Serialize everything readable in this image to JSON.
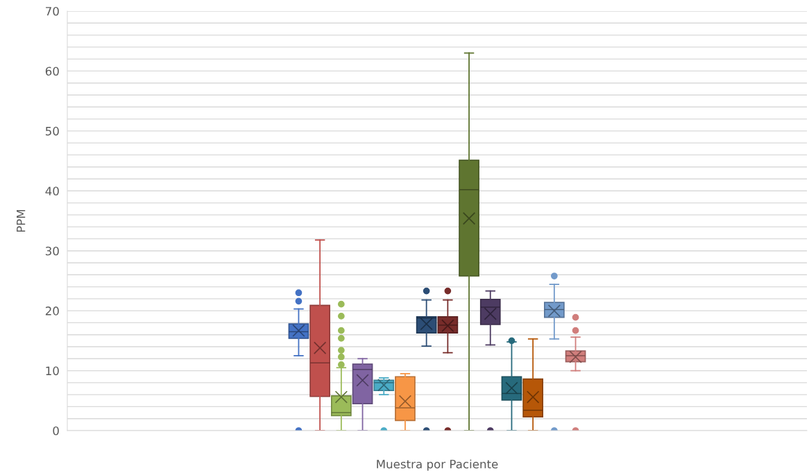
{
  "chart_data": {
    "type": "box",
    "xlabel": "Muestra por Paciente",
    "ylabel": "PPM",
    "categories": [
      null
    ],
    "ylim": [
      0,
      70
    ],
    "yticks": [
      0,
      {
        "value": 2,
        "label": null
      },
      {
        "value": 4,
        "label": null
      },
      {
        "value": 6,
        "label": null
      },
      {
        "value": 8,
        "label": null
      },
      10,
      {
        "value": 12,
        "label": null
      },
      {
        "value": 14,
        "label": null
      },
      {
        "value": 16,
        "label": null
      },
      {
        "value": 18,
        "label": null
      },
      20,
      {
        "value": 22,
        "label": null
      },
      {
        "value": 24,
        "label": null
      },
      {
        "value": 26,
        "label": null
      },
      {
        "value": 28,
        "label": null
      },
      30,
      {
        "value": 32,
        "label": null
      },
      {
        "value": 34,
        "label": null
      },
      {
        "value": 36,
        "label": null
      },
      {
        "value": 38,
        "label": null
      },
      40,
      {
        "value": 42,
        "label": null
      },
      {
        "value": 44,
        "label": null
      },
      {
        "value": 46,
        "label": null
      },
      {
        "value": 48,
        "label": null
      },
      50,
      {
        "value": 52,
        "label": null
      },
      {
        "value": 54,
        "label": null
      },
      {
        "value": 56,
        "label": null
      },
      {
        "value": 58,
        "label": null
      },
      60,
      {
        "value": 62,
        "label": null
      },
      {
        "value": 64,
        "label": null
      },
      {
        "value": 66,
        "label": null
      },
      {
        "value": 68,
        "label": null
      },
      70
    ],
    "grid": "y",
    "tick_labels": "y",
    "series": [
      {
        "color": "#4472c4",
        "boxes": [
          {
            "low": 12.5,
            "q1": 15.4,
            "median": 16.5,
            "q3": 17.8,
            "high": 20.3,
            "mean": 16.7,
            "outliers": [
              23.0,
              21.6,
              0
            ]
          }
        ]
      },
      {
        "color": "#c0504d",
        "boxes": [
          {
            "low": 0,
            "q1": 5.7,
            "median": 11.3,
            "q3": 20.9,
            "high": 31.8,
            "mean": 13.8
          }
        ]
      },
      {
        "color": "#9bbb59",
        "boxes": [
          {
            "low": 0,
            "q1": 2.5,
            "median": 3.0,
            "q3": 5.8,
            "high": 10.5,
            "mean": 5.6,
            "outliers": [
              21.1,
              19.1,
              16.7,
              15.4,
              13.4,
              12.3,
              11.0
            ]
          }
        ]
      },
      {
        "color": "#8064a2",
        "boxes": [
          {
            "low": 0,
            "q1": 4.5,
            "median": 10.2,
            "q3": 11.1,
            "high": 12.0,
            "mean": 8.4
          }
        ]
      },
      {
        "color": "#4bacc6",
        "boxes": [
          {
            "low": 6.0,
            "q1": 6.7,
            "median": 8.0,
            "q3": 8.4,
            "high": 8.8,
            "mean": 7.6,
            "outliers": [
              0
            ]
          }
        ]
      },
      {
        "color": "#f79646",
        "boxes": [
          {
            "low": 0,
            "q1": 1.7,
            "median": 3.8,
            "q3": 9.0,
            "high": 9.5,
            "mean": 4.9
          }
        ]
      },
      {
        "color": "#2c4d75",
        "boxes": [
          {
            "low": 14.1,
            "q1": 16.3,
            "median": 18.8,
            "q3": 19.0,
            "high": 21.8,
            "mean": 17.8,
            "outliers": [
              23.3,
              0
            ]
          }
        ]
      },
      {
        "color": "#772c2a",
        "boxes": [
          {
            "low": 13.0,
            "q1": 16.3,
            "median": 17.6,
            "q3": 19.0,
            "high": 21.8,
            "mean": 17.5,
            "outliers": [
              23.3,
              0
            ]
          }
        ]
      },
      {
        "color": "#5f7530",
        "boxes": [
          {
            "low": 0,
            "q1": 25.8,
            "median": 40.2,
            "q3": 45.1,
            "high": 63.0,
            "mean": 35.4
          }
        ]
      },
      {
        "color": "#4d3b62",
        "boxes": [
          {
            "low": 14.3,
            "q1": 17.7,
            "median": 20.6,
            "q3": 21.9,
            "high": 23.3,
            "mean": 19.5,
            "outliers": [
              0
            ]
          }
        ]
      },
      {
        "color": "#276a7c",
        "boxes": [
          {
            "low": 0,
            "q1": 5.1,
            "median": 6.2,
            "q3": 9.0,
            "high": 14.8,
            "mean": 7.1,
            "outliers": [
              15.0
            ]
          }
        ]
      },
      {
        "color": "#b65708",
        "boxes": [
          {
            "low": 0,
            "q1": 2.3,
            "median": 3.4,
            "q3": 8.6,
            "high": 15.3,
            "mean": 5.6
          }
        ]
      },
      {
        "color": "#729aca",
        "boxes": [
          {
            "low": 15.3,
            "q1": 18.9,
            "median": 20.2,
            "q3": 21.4,
            "high": 24.4,
            "mean": 20.0,
            "outliers": [
              25.8,
              0
            ]
          }
        ]
      },
      {
        "color": "#d07e7c",
        "boxes": [
          {
            "low": 10.0,
            "q1": 11.5,
            "median": 12.5,
            "q3": 13.3,
            "high": 15.6,
            "mean": 12.3,
            "outliers": [
              18.9,
              16.7,
              0
            ]
          }
        ]
      }
    ]
  }
}
